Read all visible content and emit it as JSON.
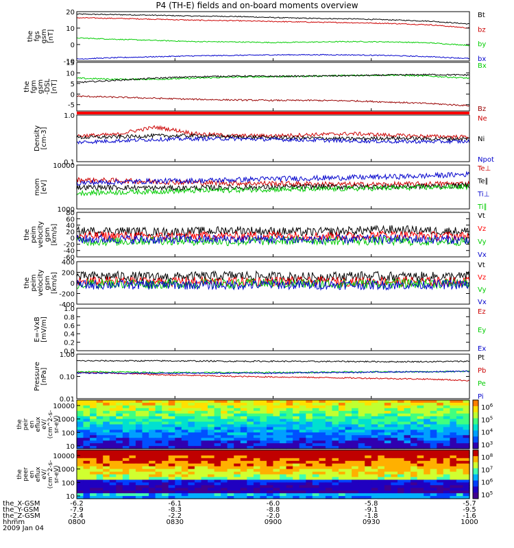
{
  "title": "P4 (TH-E) fields and on-board moments overview",
  "chart_data": {
    "type": "line",
    "x_ticks": [
      "0800",
      "0830",
      "0900",
      "0930",
      "1000"
    ],
    "panels": [
      {
        "id": "fgs",
        "ylabel": [
          "the",
          "fgs",
          "gsm",
          "[nT]"
        ],
        "ylim": [
          -10,
          20
        ],
        "ticks": [
          {
            "v": 20,
            "t": "20"
          },
          {
            "v": 10,
            "t": "10"
          },
          {
            "v": 0,
            "t": "0"
          },
          {
            "v": -10,
            "t": "-10"
          }
        ],
        "scale": "linear",
        "series": [
          {
            "name": "Bt",
            "color": "#000000",
            "values": [
              18.5,
              18.2,
              17.8,
              17.3,
              17.1,
              16.4,
              15.9,
              15.6,
              15.0,
              14.2,
              12.5
            ]
          },
          {
            "name": "bz",
            "color": "#cc0000",
            "values": [
              16.3,
              15.9,
              15.4,
              14.8,
              14.5,
              14.0,
              13.6,
              13.3,
              12.8,
              12.0,
              10.0
            ]
          },
          {
            "name": "by",
            "color": "#00cc00",
            "values": [
              4.0,
              3.2,
              2.5,
              1.8,
              1.6,
              1.2,
              1.5,
              1.8,
              1.6,
              1.0,
              -0.5
            ]
          },
          {
            "name": "bx",
            "color": "#0000cc",
            "values": [
              -8.8,
              -8.0,
              -7.4,
              -6.9,
              -6.6,
              -6.3,
              -6.2,
              -6.3,
              -6.7,
              -7.4,
              -8.5
            ]
          }
        ]
      },
      {
        "id": "fgm",
        "ylabel": [
          "the",
          "fgm",
          "gsm",
          "-DSL",
          "[nT]"
        ],
        "ylim": [
          -8,
          15
        ],
        "ticks": [
          {
            "v": 15,
            "t": "15"
          },
          {
            "v": 10,
            "t": "10"
          },
          {
            "v": 5,
            "t": "5"
          },
          {
            "v": 0,
            "t": "0"
          },
          {
            "v": -5,
            "t": "-5"
          }
        ],
        "scale": "linear",
        "series": [
          {
            "name": "Bx",
            "color": "#00cc00",
            "values": [
              7.5,
              7.0,
              7.0,
              7.5,
              8.0,
              8.2,
              8.5,
              8.8,
              9.0,
              8.5,
              7.5
            ]
          },
          {
            "name": "",
            "color": "#000000",
            "values": [
              5.5,
              6.5,
              7.5,
              8.2,
              8.5,
              8.4,
              8.5,
              8.7,
              9.0,
              9.2,
              9.0
            ]
          },
          {
            "name": "Bz",
            "color": "#990000",
            "values": [
              -1.0,
              -1.5,
              -2.0,
              -2.5,
              -2.8,
              -3.0,
              -3.0,
              -3.2,
              -3.8,
              -4.5,
              -5.5
            ]
          }
        ]
      },
      {
        "id": "density",
        "ylabel": [
          "Density",
          "[cm-3]"
        ],
        "ylim": [
          0.1,
          1.0
        ],
        "ticks": [
          {
            "v": 1.0,
            "t": "1.0"
          },
          {
            "v": 0.1,
            "t": "0.1"
          }
        ],
        "scale": "log",
        "series": [
          {
            "name": "Ne",
            "color": "#cc0000",
            "values": [
              0.36,
              0.38,
              0.55,
              0.4,
              0.36,
              0.36,
              0.38,
              0.4,
              0.37,
              0.35,
              0.34
            ]
          },
          {
            "name": "Ni",
            "color": "#000000",
            "values": [
              0.33,
              0.34,
              0.36,
              0.36,
              0.34,
              0.33,
              0.32,
              0.31,
              0.32,
              0.31,
              0.31
            ]
          },
          {
            "name": "Npot",
            "color": "#0000cc",
            "values": [
              0.26,
              0.28,
              0.3,
              0.31,
              0.31,
              0.3,
              0.29,
              0.28,
              0.27,
              0.27,
              0.27
            ]
          }
        ]
      },
      {
        "id": "mom",
        "ylabel": [
          "mom",
          "[eV]"
        ],
        "ylim": [
          1000,
          10000
        ],
        "ticks": [
          {
            "v": 10000,
            "t": "10000"
          },
          {
            "v": 1000,
            "t": "1000"
          }
        ],
        "scale": "log",
        "series": [
          {
            "name": "Te⊥",
            "color": "#cc0000",
            "values": [
              4600,
              4400,
              4200,
              4000,
              3900,
              3800,
              3700,
              3600,
              3600,
              3700,
              3800
            ]
          },
          {
            "name": "Te∥",
            "color": "#000000",
            "values": [
              3100,
              3100,
              3000,
              3000,
              3100,
              3100,
              3200,
              3200,
              3200,
              3300,
              3400
            ]
          },
          {
            "name": "Ti⊥",
            "color": "#0000cc",
            "values": [
              3900,
              4100,
              4300,
              4400,
              4600,
              4900,
              5000,
              5200,
              5400,
              5700,
              6200
            ]
          },
          {
            "name": "Ti∥",
            "color": "#00cc00",
            "values": [
              2300,
              2400,
              2500,
              2600,
              2700,
              2800,
              2800,
              2900,
              3000,
              3100,
              3200
            ]
          }
        ]
      },
      {
        "id": "vel1",
        "ylabel": [
          "the",
          "peim",
          "velocity",
          "gsm",
          "[km/s]"
        ],
        "ylim": [
          -60,
          80
        ],
        "ticks": [
          {
            "v": 80,
            "t": "80"
          },
          {
            "v": 60,
            "t": "60"
          },
          {
            "v": 40,
            "t": "40"
          },
          {
            "v": 20,
            "t": "20"
          },
          {
            "v": 0,
            "t": "0"
          },
          {
            "v": -20,
            "t": "-20"
          },
          {
            "v": -40,
            "t": "-40"
          },
          {
            "v": -60,
            "t": "-60"
          }
        ],
        "scale": "linear",
        "series": [
          {
            "name": "Vt",
            "color": "#000000",
            "values": [
              20,
              22,
              18,
              20,
              24,
              20,
              18,
              22,
              26,
              22,
              20
            ]
          },
          {
            "name": "Vz",
            "color": "#ff0000",
            "values": [
              5,
              6,
              4,
              6,
              5,
              8,
              6,
              5,
              10,
              6,
              5
            ]
          },
          {
            "name": "Vy",
            "color": "#00cc00",
            "values": [
              -10,
              -12,
              -8,
              -10,
              -12,
              -10,
              -8,
              -10,
              -10,
              -12,
              -10
            ]
          },
          {
            "name": "Vx",
            "color": "#0000cc",
            "values": [
              -5,
              -4,
              -6,
              -5,
              -4,
              -5,
              -6,
              -5,
              -4,
              -5,
              -6
            ]
          }
        ]
      },
      {
        "id": "vel2",
        "ylabel": [
          "the",
          "peim",
          "velocity",
          "gsm",
          "[km/s]"
        ],
        "ylim": [
          -400,
          400
        ],
        "ticks": [
          {
            "v": 400,
            "t": "400"
          },
          {
            "v": 200,
            "t": "200"
          },
          {
            "v": 0,
            "t": "0"
          },
          {
            "v": -200,
            "t": "-200"
          },
          {
            "v": -400,
            "t": "-400"
          }
        ],
        "scale": "linear",
        "series": [
          {
            "name": "Vt",
            "color": "#000000",
            "values": [
              120,
              130,
              110,
              120,
              140,
              120,
              110,
              130,
              120,
              120,
              120
            ]
          },
          {
            "name": "Vz",
            "color": "#ff0000",
            "values": [
              20,
              30,
              20,
              25,
              20,
              30,
              20,
              25,
              30,
              20,
              25
            ]
          },
          {
            "name": "Vy",
            "color": "#00cc00",
            "values": [
              -20,
              -10,
              -20,
              -15,
              -20,
              -10,
              -20,
              -15,
              -20,
              -10,
              -15
            ]
          },
          {
            "name": "Vx",
            "color": "#0000cc",
            "values": [
              -40,
              -30,
              -40,
              -35,
              -40,
              -30,
              -40,
              -35,
              -40,
              -30,
              -35
            ]
          }
        ]
      },
      {
        "id": "exb",
        "ylabel": [
          "E=-VxB",
          "[mV/m]"
        ],
        "ylim": [
          0,
          1
        ],
        "ticks": [
          {
            "v": 1.0,
            "t": "1.0"
          },
          {
            "v": 0.8,
            "t": "0.8"
          },
          {
            "v": 0.6,
            "t": "0.6"
          },
          {
            "v": 0.4,
            "t": "0.4"
          },
          {
            "v": 0.2,
            "t": "0.2"
          },
          {
            "v": 0.0,
            "t": "0.0"
          }
        ],
        "scale": "linear",
        "series": [
          {
            "name": "Ez",
            "color": "#cc0000",
            "values": []
          },
          {
            "name": "Ey",
            "color": "#00cc00",
            "values": []
          },
          {
            "name": "Ex",
            "color": "#0000cc",
            "values": []
          }
        ]
      },
      {
        "id": "pressure",
        "ylabel": [
          "Pressure",
          "[nPa]"
        ],
        "ylim": [
          0.01,
          1.0
        ],
        "ticks": [
          {
            "v": 1.0,
            "t": "1.00"
          },
          {
            "v": 0.1,
            "t": "0.10"
          },
          {
            "v": 0.01,
            "t": "0.01"
          }
        ],
        "scale": "log",
        "series": [
          {
            "name": "Pt",
            "color": "#000000",
            "values": [
              0.5,
              0.5,
              0.5,
              0.49,
              0.48,
              0.48,
              0.47,
              0.47,
              0.46,
              0.46,
              0.48
            ]
          },
          {
            "name": "Pb",
            "color": "#cc0000",
            "values": [
              0.15,
              0.14,
              0.12,
              0.11,
              0.1,
              0.095,
              0.09,
              0.085,
              0.08,
              0.075,
              0.065
            ]
          },
          {
            "name": "Pe",
            "color": "#00cc00",
            "values": [
              0.16,
              0.16,
              0.15,
              0.15,
              0.15,
              0.15,
              0.15,
              0.16,
              0.16,
              0.16,
              0.17
            ]
          },
          {
            "name": "Pi",
            "color": "#0000cc",
            "values": [
              0.14,
              0.14,
              0.14,
              0.14,
              0.14,
              0.14,
              0.15,
              0.15,
              0.16,
              0.16,
              0.17
            ]
          }
        ]
      }
    ],
    "spectrograms": [
      {
        "id": "peir",
        "ylabel": [
          "the",
          "peir",
          "en",
          "eflux",
          "eV/",
          "(cm^2-s-",
          "sr-eV)"
        ],
        "ticks": [
          "10000",
          "1000",
          "100",
          "10"
        ],
        "colorbar_ticks": [
          {
            "base": "10",
            "exp": "6"
          },
          {
            "base": "10",
            "exp": "5"
          },
          {
            "base": "10",
            "exp": "4"
          },
          {
            "base": "10",
            "exp": "3"
          }
        ]
      },
      {
        "id": "peer",
        "ylabel": [
          "the",
          "peer",
          "en",
          "eflux",
          "eV/",
          "(cm^2-s-",
          "sr-eV)"
        ],
        "ticks": [
          "10000",
          "1000",
          "100",
          "10"
        ],
        "colorbar_ticks": [
          {
            "base": "10",
            "exp": "8"
          },
          {
            "base": "10",
            "exp": "7"
          },
          {
            "base": "10",
            "exp": "6"
          },
          {
            "base": "10",
            "exp": "5"
          }
        ]
      }
    ],
    "ephemeris": [
      {
        "label": "the_X-GSM",
        "values": [
          "-6.2",
          "-6.1",
          "-6.0",
          "-5.8",
          "-5.7"
        ]
      },
      {
        "label": "the_Y-GSM",
        "values": [
          "-7.9",
          "-8.3",
          "-8.8",
          "-9.1",
          "-9.5"
        ]
      },
      {
        "label": "the_Z-GSM",
        "values": [
          "-2.4",
          "-2.2",
          "-2.0",
          "-1.8",
          "-1.6"
        ]
      },
      {
        "label": "hhmm",
        "values": [
          "0800",
          "0830",
          "0900",
          "0930",
          "1000"
        ]
      }
    ],
    "date": "2009 Jan 04"
  }
}
